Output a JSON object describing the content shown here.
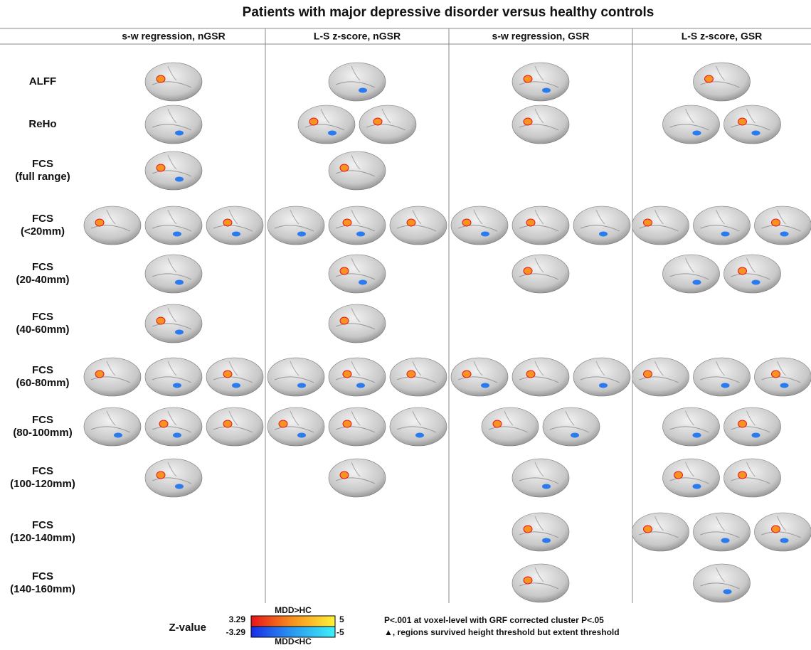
{
  "title": "Patients with major depressive disorder versus healthy controls",
  "columns": [
    "s-w regression, nGSR",
    "L-S z-score, nGSR",
    "s-w regression, GSR",
    "L-S z-score, GSR"
  ],
  "rows": [
    [
      "ALFF"
    ],
    [
      "ReHo"
    ],
    [
      "FCS",
      "(full range)"
    ],
    [
      "FCS",
      "(<20mm)"
    ],
    [
      "FCS",
      "(20-40mm)"
    ],
    [
      "FCS",
      "(40-60mm)"
    ],
    [
      "FCS",
      "(60-80mm)"
    ],
    [
      "FCS",
      "(80-100mm)"
    ],
    [
      "FCS",
      "(100-120mm)"
    ],
    [
      "FCS",
      "(120-140mm)"
    ],
    [
      "FCS",
      "(140-160mm)"
    ]
  ],
  "legend": {
    "label": "Z-value",
    "pos_low": "3.29",
    "pos_high": "5",
    "neg_low": "-3.29",
    "neg_high": "-5",
    "pos_name": "MDD>HC",
    "neg_name": "MDD<HC"
  },
  "notes": [
    "P<.001 at voxel-level with GRF corrected cluster P<.05",
    "▲, regions survived height threshold but extent threshold"
  ]
}
